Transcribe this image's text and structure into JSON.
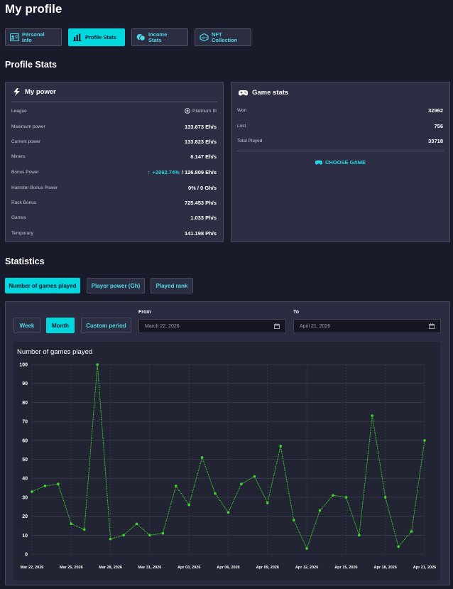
{
  "page_title": "My profile",
  "tabs": [
    {
      "label": "Personal Info",
      "icon": "id-card-icon"
    },
    {
      "label": "Profile Stats",
      "icon": "bar-chart-icon"
    },
    {
      "label": "Income Stats",
      "icon": "coins-icon"
    },
    {
      "label": "NFT Collection",
      "icon": "nft-icon"
    }
  ],
  "profile_stats_heading": "Profile Stats",
  "my_power": {
    "title": "My power",
    "league_label": "League",
    "league_value": "Platinum III",
    "max_power_label": "Maximum power",
    "max_power_value": "133.673 Eh/s",
    "current_power_label": "Current power",
    "current_power_value": "133.823 Eh/s",
    "miners_label": "Miners",
    "miners_value": "6.147 Eh/s",
    "bonus_power_label": "Bonus Power",
    "bonus_power_percent": "+2062.74%",
    "bonus_power_value": "/ 126.809 Eh/s",
    "hamster_label": "Hamster Bonus Power",
    "hamster_value": "0% / 0 Gh/s",
    "rack_label": "Rack Bonus",
    "rack_value": "725.453 Ph/s",
    "games_label": "Games",
    "games_value": "1.033 Ph/s",
    "temporary_label": "Temporary",
    "temporary_value": "141.198 Ph/s"
  },
  "game_stats": {
    "title": "Game stats",
    "won_label": "Won",
    "won_value": "32962",
    "lost_label": "Lost",
    "lost_value": "756",
    "total_label": "Total Played",
    "total_value": "33718",
    "choose_label": "CHOOSE GAME"
  },
  "statistics_heading": "Statistics",
  "stat_tabs": [
    "Number of games played",
    "Player power (Gh)",
    "Played rank"
  ],
  "period_buttons": [
    "Week",
    "Month",
    "Custom period"
  ],
  "from_label": "From",
  "from_value": "March 22, 2026",
  "to_label": "To",
  "to_value": "April 21, 2026",
  "colors": {
    "accent": "#00d8e0",
    "line": "#3fd72c",
    "bg": "#1a1b2a"
  },
  "chart_data": {
    "type": "line",
    "title": "Number of games played",
    "ylim": [
      0,
      100
    ],
    "yticks": [
      0,
      10,
      20,
      30,
      40,
      50,
      60,
      70,
      80,
      90,
      100
    ],
    "x_tick_labels": [
      "Mar 22, 2026",
      "Mar 25, 2026",
      "Mar 28, 2026",
      "Mar 31, 2026",
      "Apr 03, 2026",
      "Apr 06, 2026",
      "Apr 09, 2026",
      "Apr 12, 2026",
      "Apr 15, 2026",
      "Apr 18, 2026",
      "Apr 21, 2026"
    ],
    "x": [
      "Mar 22",
      "Mar 23",
      "Mar 24",
      "Mar 25",
      "Mar 26",
      "Mar 27",
      "Mar 28",
      "Mar 29",
      "Mar 30",
      "Mar 31",
      "Apr 01",
      "Apr 02",
      "Apr 03",
      "Apr 04",
      "Apr 05",
      "Apr 06",
      "Apr 07",
      "Apr 08",
      "Apr 09",
      "Apr 10",
      "Apr 11",
      "Apr 12",
      "Apr 13",
      "Apr 14",
      "Apr 15",
      "Apr 16",
      "Apr 17",
      "Apr 18",
      "Apr 19",
      "Apr 20",
      "Apr 21"
    ],
    "values": [
      33,
      36,
      37,
      16,
      13,
      100,
      8,
      10,
      16,
      10,
      11,
      36,
      26,
      51,
      32,
      22,
      37,
      41,
      27,
      57,
      18,
      3,
      23,
      31,
      30,
      10,
      73,
      30,
      4,
      12,
      60
    ],
    "grid": true
  }
}
